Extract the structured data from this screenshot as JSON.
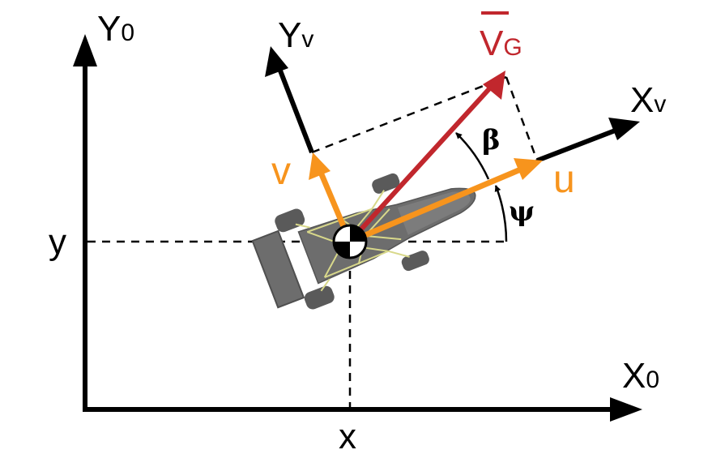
{
  "labels": {
    "y0_main": "Y",
    "y0_sub": "0",
    "x0_main": "X",
    "x0_sub": "0",
    "yv_main": "Y",
    "yv_sub": "v",
    "xv_main": "X",
    "xv_sub": "v",
    "vg_main": "V",
    "vg_sub": "G",
    "u": "u",
    "v": "v",
    "beta": "β",
    "psi": "ψ",
    "x_pos": "x",
    "y_pos": "y"
  },
  "colors": {
    "axis": "#000000",
    "velocity_components": "#f7941d",
    "ground_velocity": "#c1272d",
    "car_body": "#6d6d6d",
    "car_tires": "#5a5a5a",
    "frame": "#d8d88a",
    "background": "#ffffff"
  }
}
